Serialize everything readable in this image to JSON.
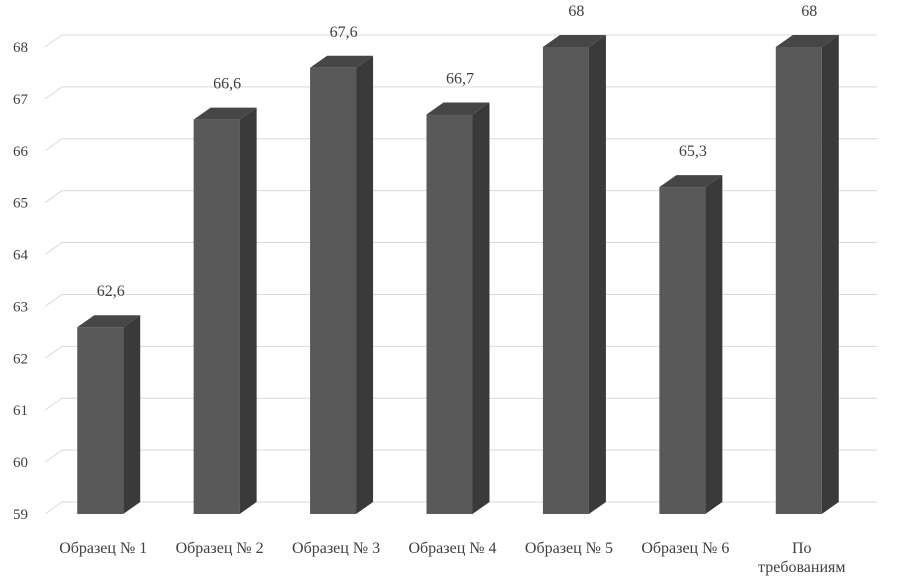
{
  "chart_data": {
    "type": "bar",
    "style": "3d-column",
    "categories": [
      "Образец № 1",
      "Образец № 2",
      "Образец № 3",
      "Образец № 4",
      "Образец № 5",
      "Образец № 6",
      "По требованиям"
    ],
    "values": [
      62.6,
      66.6,
      67.6,
      66.7,
      68,
      65.3,
      68
    ],
    "data_labels": [
      "62,6",
      "66,6",
      "67,6",
      "66,7",
      "68",
      "65,3",
      "68"
    ],
    "y_ticks": [
      59,
      60,
      61,
      62,
      63,
      64,
      65,
      66,
      67,
      68
    ],
    "y_tick_labels": [
      "59",
      "60",
      "61",
      "62",
      "63",
      "64",
      "65",
      "66",
      "67",
      "68"
    ],
    "ylim": [
      59,
      68
    ],
    "title": "",
    "xlabel": "",
    "ylabel": "",
    "grid": true,
    "legend": "none",
    "colors": {
      "bar_front": "#595959",
      "bar_side": "#3a3a3a",
      "bar_top": "#464646",
      "grid": "#d9d9d9",
      "text": "#404040"
    }
  }
}
